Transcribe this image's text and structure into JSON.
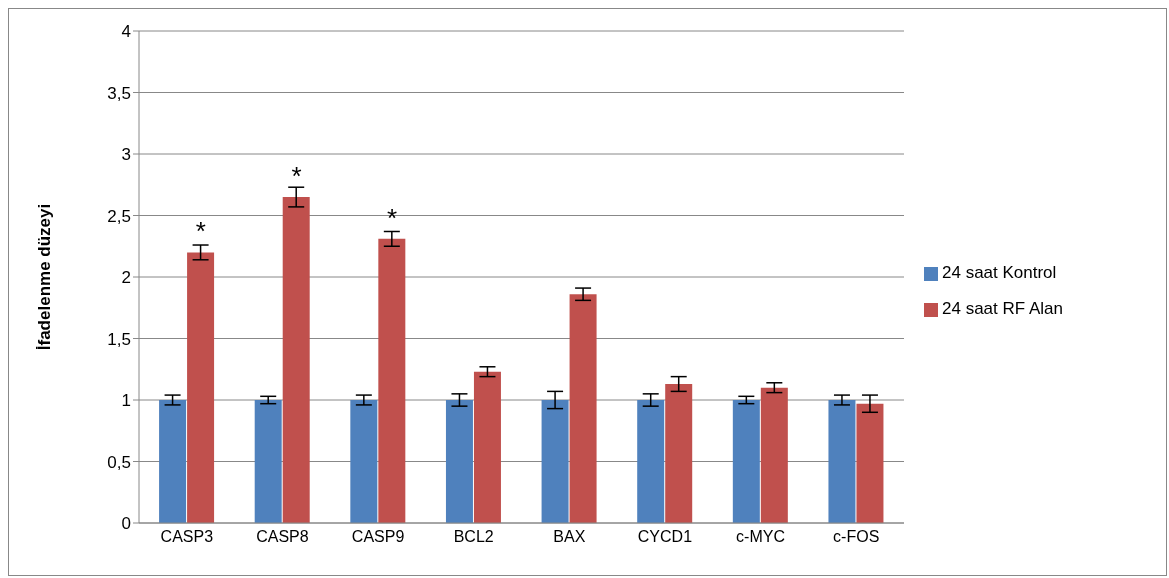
{
  "chart_data": {
    "type": "bar",
    "ylabel": "İfadelenme düzeyi",
    "categories": [
      "CASP3",
      "CASP8",
      "CASP9",
      "BCL2",
      "BAX",
      "CYCD1",
      "c-MYC",
      "c-FOS"
    ],
    "series": [
      {
        "name": "24 saat Kontrol",
        "color": "#4f81bd",
        "values": [
          1,
          1,
          1,
          1,
          1,
          1,
          1,
          1
        ],
        "errors": [
          0.04,
          0.03,
          0.04,
          0.05,
          0.07,
          0.05,
          0.03,
          0.04
        ]
      },
      {
        "name": "24 saat RF Alan",
        "color": "#c0504d",
        "values": [
          2.2,
          2.65,
          2.31,
          1.23,
          1.86,
          1.13,
          1.1,
          0.97
        ],
        "errors": [
          0.06,
          0.08,
          0.06,
          0.04,
          0.05,
          0.06,
          0.04,
          0.07
        ]
      }
    ],
    "ylim": [
      0,
      4
    ],
    "yticks": [
      0,
      {
        "value": 0.5,
        "label": "0,5"
      },
      1,
      {
        "value": 1.5,
        "label": "1,5"
      },
      2,
      {
        "value": 2.5,
        "label": "2,5"
      },
      3,
      {
        "value": 3.5,
        "label": "3,5"
      },
      4
    ],
    "grid": "y",
    "legend": "right",
    "annotations": [
      {
        "text": "*",
        "x": "CASP3",
        "y": 2.2
      },
      {
        "text": "*",
        "x": "CASP8",
        "y": 2.65
      },
      {
        "text": "*",
        "x": "CASP9",
        "y": 2.31
      }
    ]
  }
}
